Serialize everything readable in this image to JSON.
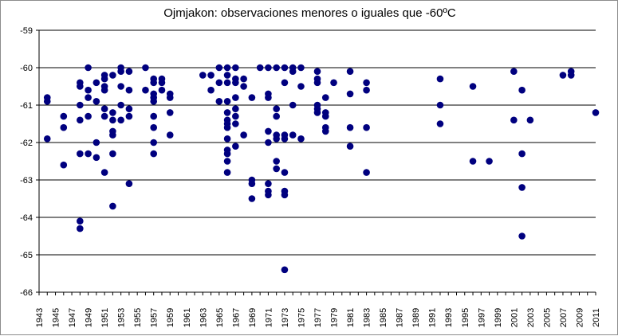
{
  "chart_data": {
    "type": "scatter",
    "title": "Ojmjakon: observaciones menores o iguales que -60ºC",
    "xlabel": "",
    "ylabel": "",
    "xlim": [
      1943,
      2011
    ],
    "ylim": [
      -66,
      -59
    ],
    "x_ticks": [
      1943,
      1945,
      1947,
      1949,
      1951,
      1953,
      1955,
      1957,
      1959,
      1961,
      1963,
      1965,
      1967,
      1969,
      1971,
      1973,
      1975,
      1977,
      1979,
      1981,
      1983,
      1985,
      1987,
      1989,
      1991,
      1993,
      1995,
      1997,
      1999,
      2001,
      2003,
      2005,
      2007,
      2009,
      2011
    ],
    "y_ticks": [
      -59,
      -60,
      -61,
      -62,
      -63,
      -64,
      -65,
      -66
    ],
    "grid": "horizontal",
    "legend": "none",
    "marker_color": "#00007f",
    "series": [
      {
        "points": [
          [
            1944,
            -60.8
          ],
          [
            1944,
            -60.9
          ],
          [
            1944,
            -61.9
          ],
          [
            1946,
            -61.3
          ],
          [
            1946,
            -61.6
          ],
          [
            1946,
            -62.6
          ],
          [
            1948,
            -60.4
          ],
          [
            1948,
            -60.5
          ],
          [
            1948,
            -61.0
          ],
          [
            1948,
            -61.4
          ],
          [
            1948,
            -62.3
          ],
          [
            1948,
            -64.1
          ],
          [
            1948,
            -64.3
          ],
          [
            1949,
            -60.0
          ],
          [
            1949,
            -60.6
          ],
          [
            1949,
            -60.8
          ],
          [
            1949,
            -61.3
          ],
          [
            1949,
            -62.3
          ],
          [
            1950,
            -60.4
          ],
          [
            1950,
            -60.9
          ],
          [
            1950,
            -62.0
          ],
          [
            1950,
            -62.4
          ],
          [
            1951,
            -60.2
          ],
          [
            1951,
            -60.3
          ],
          [
            1951,
            -60.5
          ],
          [
            1951,
            -60.6
          ],
          [
            1951,
            -61.1
          ],
          [
            1951,
            -61.3
          ],
          [
            1951,
            -62.8
          ],
          [
            1952,
            -60.2
          ],
          [
            1952,
            -61.2
          ],
          [
            1952,
            -61.4
          ],
          [
            1952,
            -61.7
          ],
          [
            1952,
            -61.8
          ],
          [
            1952,
            -62.3
          ],
          [
            1952,
            -63.7
          ],
          [
            1953,
            -60.0
          ],
          [
            1953,
            -60.1
          ],
          [
            1953,
            -60.5
          ],
          [
            1953,
            -61.0
          ],
          [
            1953,
            -61.4
          ],
          [
            1954,
            -60.1
          ],
          [
            1954,
            -60.6
          ],
          [
            1954,
            -61.1
          ],
          [
            1954,
            -61.3
          ],
          [
            1954,
            -63.1
          ],
          [
            1956,
            -60.0
          ],
          [
            1956,
            -60.6
          ],
          [
            1957,
            -60.3
          ],
          [
            1957,
            -60.4
          ],
          [
            1957,
            -60.7
          ],
          [
            1957,
            -60.8
          ],
          [
            1957,
            -60.9
          ],
          [
            1957,
            -61.3
          ],
          [
            1957,
            -61.6
          ],
          [
            1957,
            -62.0
          ],
          [
            1957,
            -62.3
          ],
          [
            1958,
            -60.3
          ],
          [
            1958,
            -60.4
          ],
          [
            1958,
            -60.6
          ],
          [
            1959,
            -60.7
          ],
          [
            1959,
            -60.8
          ],
          [
            1959,
            -61.2
          ],
          [
            1959,
            -61.8
          ],
          [
            1963,
            -60.2
          ],
          [
            1964,
            -60.2
          ],
          [
            1964,
            -60.6
          ],
          [
            1965,
            -60.0
          ],
          [
            1965,
            -60.4
          ],
          [
            1965,
            -60.9
          ],
          [
            1966,
            -60.0
          ],
          [
            1966,
            -60.2
          ],
          [
            1966,
            -60.4
          ],
          [
            1966,
            -60.9
          ],
          [
            1966,
            -61.2
          ],
          [
            1966,
            -61.4
          ],
          [
            1966,
            -61.5
          ],
          [
            1966,
            -61.6
          ],
          [
            1966,
            -61.9
          ],
          [
            1966,
            -62.2
          ],
          [
            1966,
            -62.3
          ],
          [
            1966,
            -62.5
          ],
          [
            1966,
            -62.8
          ],
          [
            1967,
            -60.0
          ],
          [
            1967,
            -60.3
          ],
          [
            1967,
            -60.4
          ],
          [
            1967,
            -60.8
          ],
          [
            1967,
            -61.1
          ],
          [
            1967,
            -61.3
          ],
          [
            1967,
            -61.5
          ],
          [
            1967,
            -62.1
          ],
          [
            1968,
            -60.3
          ],
          [
            1968,
            -60.5
          ],
          [
            1968,
            -61.8
          ],
          [
            1969,
            -60.8
          ],
          [
            1969,
            -63.0
          ],
          [
            1969,
            -63.1
          ],
          [
            1969,
            -63.5
          ],
          [
            1970,
            -60.0
          ],
          [
            1971,
            -60.0
          ],
          [
            1971,
            -60.7
          ],
          [
            1971,
            -60.8
          ],
          [
            1971,
            -61.7
          ],
          [
            1971,
            -62.0
          ],
          [
            1971,
            -63.1
          ],
          [
            1971,
            -63.3
          ],
          [
            1971,
            -63.4
          ],
          [
            1972,
            -60.0
          ],
          [
            1972,
            -61.1
          ],
          [
            1972,
            -61.3
          ],
          [
            1972,
            -61.8
          ],
          [
            1972,
            -61.9
          ],
          [
            1972,
            -62.5
          ],
          [
            1972,
            -62.7
          ],
          [
            1973,
            -60.0
          ],
          [
            1973,
            -60.4
          ],
          [
            1973,
            -61.8
          ],
          [
            1973,
            -61.9
          ],
          [
            1973,
            -62.8
          ],
          [
            1973,
            -63.3
          ],
          [
            1973,
            -63.4
          ],
          [
            1973,
            -65.4
          ],
          [
            1974,
            -60.0
          ],
          [
            1974,
            -60.1
          ],
          [
            1974,
            -61.0
          ],
          [
            1974,
            -61.8
          ],
          [
            1975,
            -60.0
          ],
          [
            1975,
            -60.5
          ],
          [
            1975,
            -61.9
          ],
          [
            1977,
            -60.1
          ],
          [
            1977,
            -60.3
          ],
          [
            1977,
            -60.4
          ],
          [
            1977,
            -61.0
          ],
          [
            1977,
            -61.1
          ],
          [
            1977,
            -61.2
          ],
          [
            1978,
            -60.8
          ],
          [
            1978,
            -61.2
          ],
          [
            1978,
            -61.3
          ],
          [
            1978,
            -61.6
          ],
          [
            1978,
            -61.7
          ],
          [
            1979,
            -60.4
          ],
          [
            1981,
            -60.1
          ],
          [
            1981,
            -60.7
          ],
          [
            1981,
            -61.6
          ],
          [
            1981,
            -62.1
          ],
          [
            1983,
            -60.4
          ],
          [
            1983,
            -60.6
          ],
          [
            1983,
            -61.6
          ],
          [
            1983,
            -62.8
          ],
          [
            1992,
            -60.3
          ],
          [
            1992,
            -61.0
          ],
          [
            1992,
            -61.5
          ],
          [
            1996,
            -60.5
          ],
          [
            1996,
            -62.5
          ],
          [
            1998,
            -62.5
          ],
          [
            2001,
            -60.1
          ],
          [
            2001,
            -61.4
          ],
          [
            2002,
            -60.6
          ],
          [
            2002,
            -62.3
          ],
          [
            2002,
            -63.2
          ],
          [
            2002,
            -64.5
          ],
          [
            2003,
            -61.4
          ],
          [
            2007,
            -60.2
          ],
          [
            2008,
            -60.1
          ],
          [
            2008,
            -60.2
          ],
          [
            2011,
            -61.2
          ]
        ]
      }
    ]
  }
}
